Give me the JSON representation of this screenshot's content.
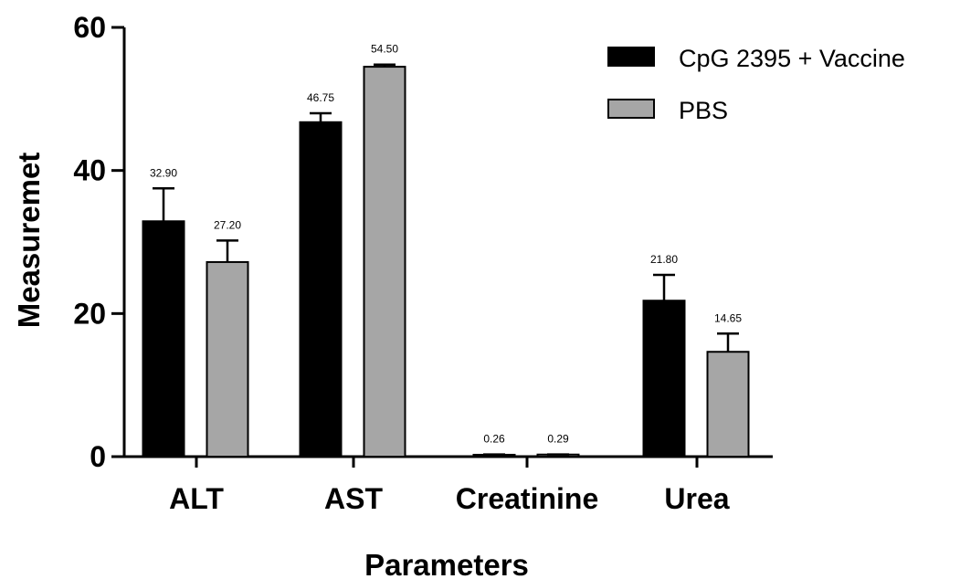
{
  "chart_data": {
    "type": "bar",
    "title": "",
    "xlabel": "Parameters",
    "ylabel": "Measuremet",
    "ylim": [
      0,
      60
    ],
    "yticks": [
      0,
      20,
      40,
      60
    ],
    "categories": [
      "ALT",
      "AST",
      "Creatinine",
      "Urea"
    ],
    "grid": false,
    "legend_position": "top-right",
    "series": [
      {
        "name": "CpG 2395 + Vaccine",
        "color": "#000000",
        "values": [
          32.9,
          46.75,
          0.26,
          21.8
        ],
        "labels": [
          "32.90",
          "46.75",
          "0.26",
          "21.80"
        ],
        "error_upper": [
          37.5,
          48.0,
          0.3,
          25.4
        ]
      },
      {
        "name": "PBS",
        "color": "#a6a6a6",
        "values": [
          27.2,
          54.5,
          0.29,
          14.65
        ],
        "labels": [
          "27.20",
          "54.50",
          "0.29",
          "14.65"
        ],
        "error_upper": [
          30.2,
          54.8,
          0.3,
          17.2
        ]
      }
    ]
  }
}
